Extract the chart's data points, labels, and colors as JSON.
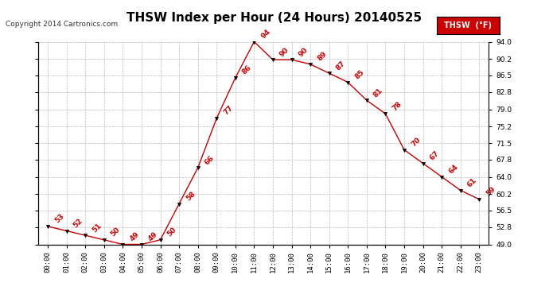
{
  "title": "THSW Index per Hour (24 Hours) 20140525",
  "copyright": "Copyright 2014 Cartronics.com",
  "legend_label": "THSW  (°F)",
  "hours": [
    0,
    1,
    2,
    3,
    4,
    5,
    6,
    7,
    8,
    9,
    10,
    11,
    12,
    13,
    14,
    15,
    16,
    17,
    18,
    19,
    20,
    21,
    22,
    23
  ],
  "values": [
    53,
    52,
    51,
    50,
    49,
    49,
    50,
    58,
    66,
    77,
    86,
    94,
    90,
    90,
    89,
    87,
    85,
    81,
    78,
    70,
    67,
    64,
    61,
    59
  ],
  "line_color": "#cc0000",
  "marker_color": "#000000",
  "label_color": "#cc0000",
  "background_color": "#ffffff",
  "grid_color": "#bbbbbb",
  "ylim_min": 49.0,
  "ylim_max": 94.0,
  "yticks": [
    49.0,
    52.8,
    56.5,
    60.2,
    64.0,
    67.8,
    71.5,
    75.2,
    79.0,
    82.8,
    86.5,
    90.2,
    94.0
  ],
  "title_fontsize": 11,
  "label_fontsize": 6.5,
  "tick_fontsize": 6.5,
  "copyright_fontsize": 6.5
}
